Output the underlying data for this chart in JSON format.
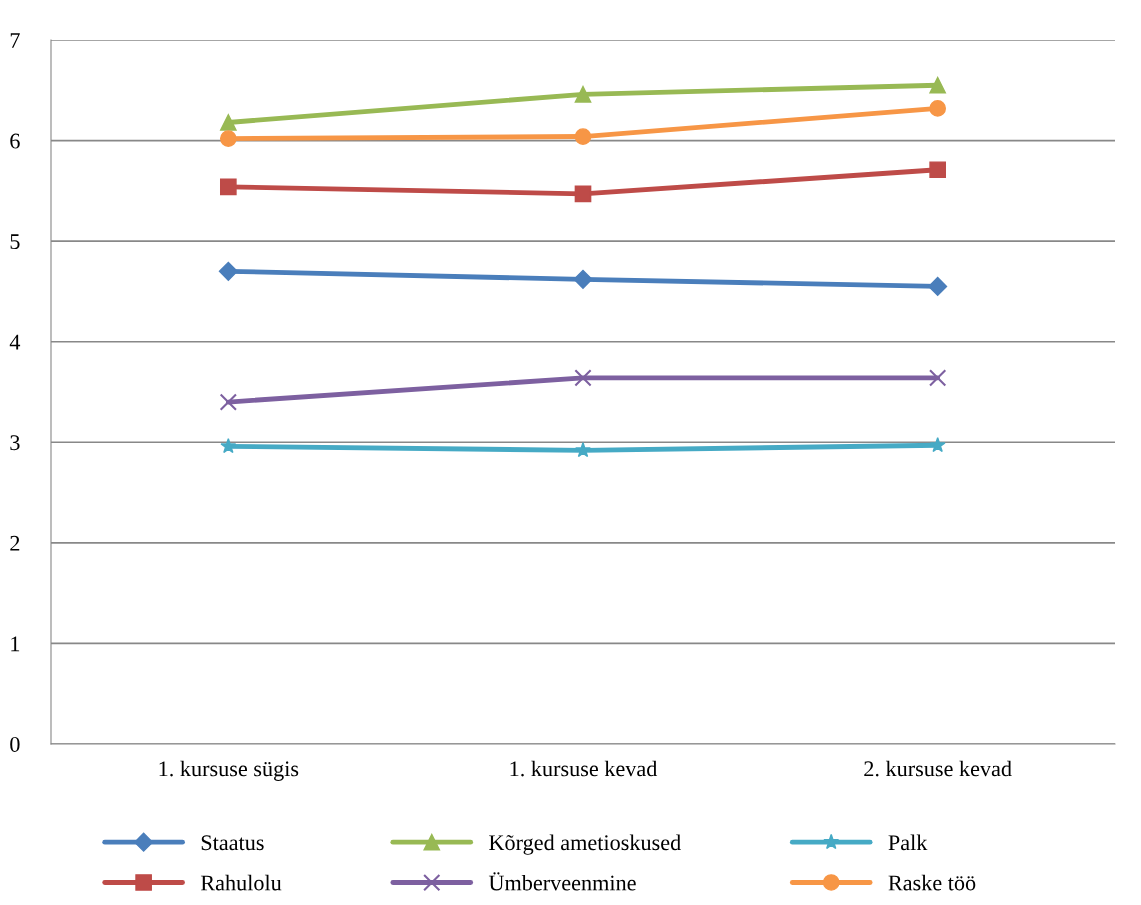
{
  "chart_data": {
    "type": "line",
    "categories": [
      "1. kursuse sügis",
      "1. kursuse kevad",
      "2. kursuse kevad"
    ],
    "series": [
      {
        "name": "Staatus",
        "color": "#4a7ebb",
        "marker": "diamond",
        "values": [
          4.7,
          4.62,
          4.55
        ]
      },
      {
        "name": "Rahulolu",
        "color": "#be4b48",
        "marker": "square",
        "values": [
          5.54,
          5.47,
          5.71
        ]
      },
      {
        "name": "Kõrged ametioskused",
        "color": "#98b954",
        "marker": "triangle",
        "values": [
          6.18,
          6.46,
          6.55
        ]
      },
      {
        "name": "Ümberveenmine",
        "color": "#7d60a0",
        "marker": "cross",
        "values": [
          3.4,
          3.64,
          3.64
        ]
      },
      {
        "name": "Palk",
        "color": "#46aac5",
        "marker": "star",
        "values": [
          2.96,
          2.92,
          2.97
        ]
      },
      {
        "name": "Raske töö",
        "color": "#f79646",
        "marker": "circle",
        "values": [
          6.02,
          6.04,
          6.32
        ]
      }
    ],
    "ylim": [
      0,
      7
    ],
    "yticks": [
      0,
      1,
      2,
      3,
      4,
      5,
      6,
      7
    ],
    "grid": "y",
    "legend": "bottom",
    "line_style": "solid"
  }
}
